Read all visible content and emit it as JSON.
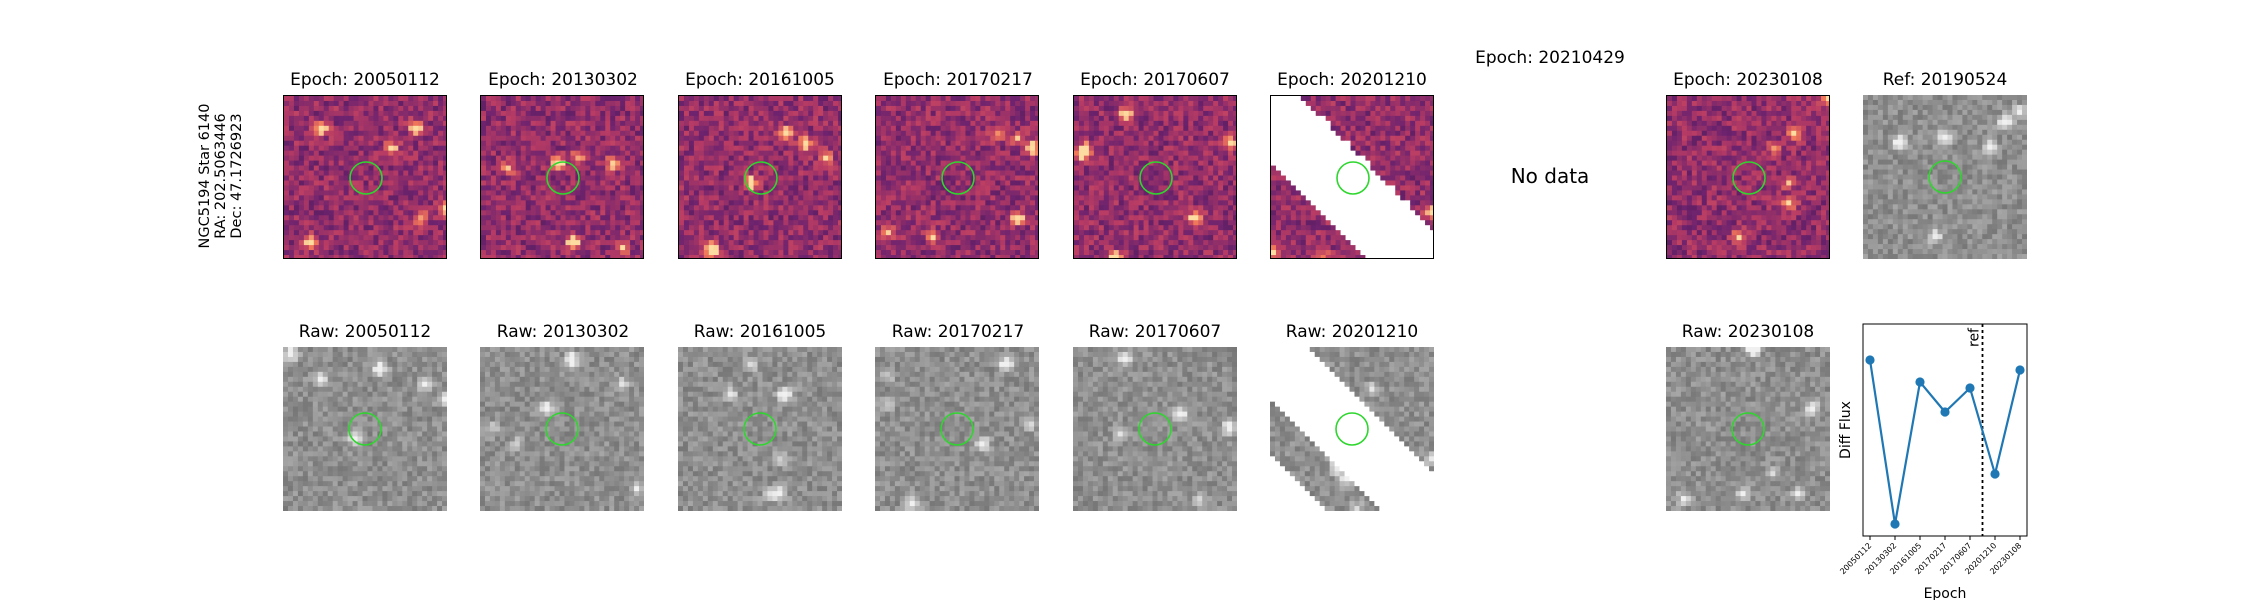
{
  "source": {
    "lines": [
      "NGC5194 Star 6140",
      "RA: 202.5063446",
      "Dec: 47.1726923"
    ]
  },
  "top_row": [
    {
      "title": "Epoch: 20050112",
      "has_data": true,
      "cmap": "magma"
    },
    {
      "title": "Epoch: 20130302",
      "has_data": true,
      "cmap": "magma"
    },
    {
      "title": "Epoch: 20161005",
      "has_data": true,
      "cmap": "magma"
    },
    {
      "title": "Epoch: 20170217",
      "has_data": true,
      "cmap": "magma"
    },
    {
      "title": "Epoch: 20170607",
      "has_data": true,
      "cmap": "magma"
    },
    {
      "title": "Epoch: 20201210",
      "has_data": true,
      "cmap": "magma",
      "chip_edge": true
    },
    {
      "title": "Epoch: 20210429",
      "has_data": false,
      "no_data_text": "No data"
    },
    {
      "title": "Epoch: 20230108",
      "has_data": true,
      "cmap": "magma"
    },
    {
      "title": "Ref: 20190524",
      "has_data": true,
      "cmap": "gray"
    }
  ],
  "bottom_row": [
    {
      "title": "Raw: 20050112",
      "has_data": true
    },
    {
      "title": "Raw: 20130302",
      "has_data": true
    },
    {
      "title": "Raw: 20161005",
      "has_data": true
    },
    {
      "title": "Raw: 20170217",
      "has_data": true
    },
    {
      "title": "Raw: 20170607",
      "has_data": true
    },
    {
      "title": "Raw: 20201210",
      "has_data": true,
      "chip_edge": true
    },
    {
      "title": "",
      "has_data": false
    },
    {
      "title": "Raw: 20230108",
      "has_data": true
    }
  ],
  "marker_color": "#2ed62e",
  "chart_data": {
    "type": "line",
    "xlabel": "Epoch",
    "ylabel": "Diff Flux",
    "categories": [
      "20050112",
      "20130302",
      "20161005",
      "20170217",
      "20170607",
      "20201210",
      "20230108"
    ],
    "values": [
      0.85,
      0.03,
      0.74,
      0.59,
      0.71,
      0.28,
      0.8
    ],
    "ylim": [
      0.0,
      1.0
    ],
    "ref_line": {
      "label": "ref",
      "after_index": 4.5
    },
    "series_color": "#1f77b4",
    "grid": false
  }
}
